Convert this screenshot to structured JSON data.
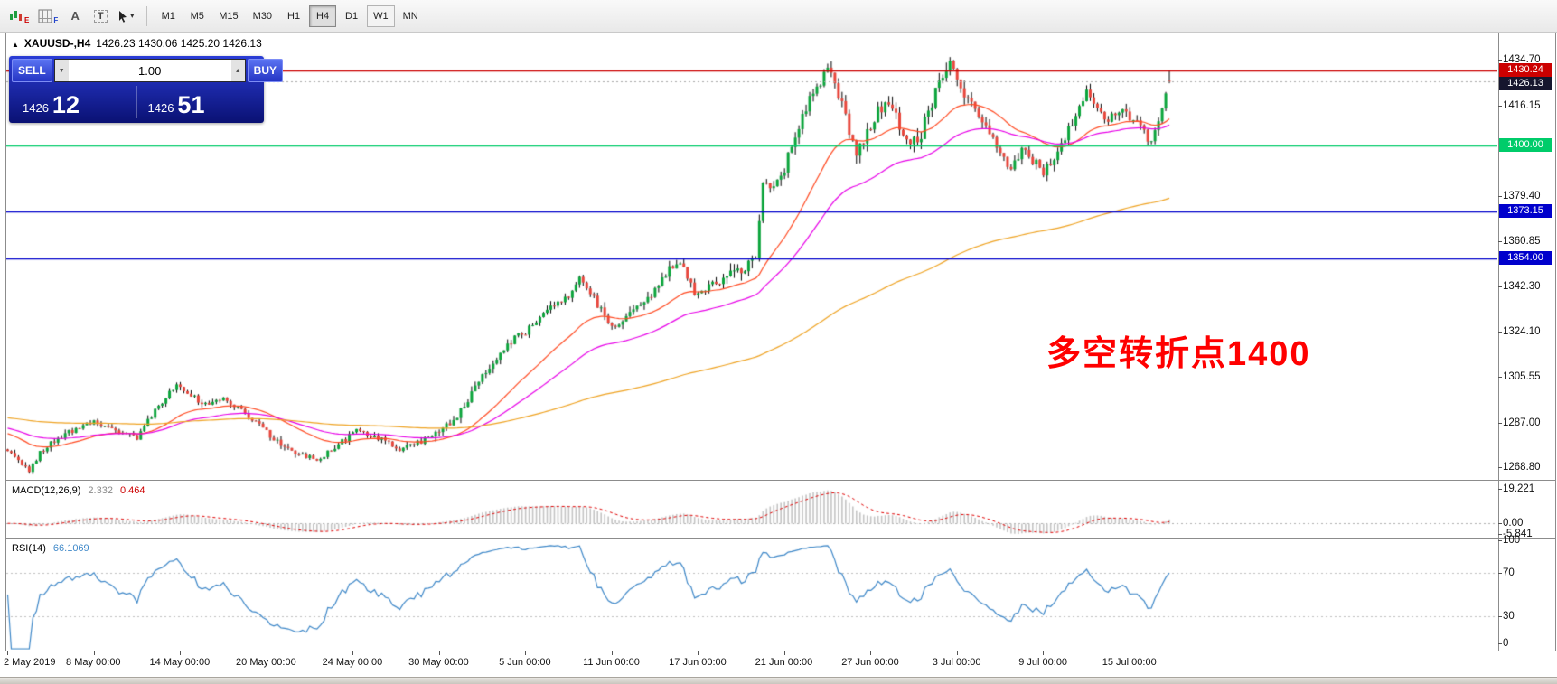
{
  "toolbar": {
    "tools": [
      {
        "name": "candlestick-chart-tool",
        "glyph": "E"
      },
      {
        "name": "indicator-grid-tool",
        "glyph": "F"
      },
      {
        "name": "font-a-tool",
        "glyph": "A"
      },
      {
        "name": "text-tool",
        "glyph": "T"
      },
      {
        "name": "cursor-tool",
        "glyph": "▾"
      }
    ],
    "timeframes": [
      {
        "label": "M1"
      },
      {
        "label": "M5"
      },
      {
        "label": "M15"
      },
      {
        "label": "M30"
      },
      {
        "label": "H1"
      },
      {
        "label": "H4",
        "active": true
      },
      {
        "label": "D1"
      },
      {
        "label": "W1",
        "boxed": true
      },
      {
        "label": "MN"
      }
    ]
  },
  "chart": {
    "marker": "▲",
    "symbol": "XAUUSD-,H4",
    "ohlc": "1426.23 1430.06 1425.20 1426.13"
  },
  "trade_panel": {
    "sell": "SELL",
    "buy": "BUY",
    "volume": "1.00",
    "spin_down": "▼",
    "spin_up": "▲",
    "bid": {
      "small": "1426",
      "big": "12"
    },
    "ask": {
      "small": "1426",
      "big": "51"
    }
  },
  "annotation": {
    "text": "多空转折点1400",
    "color": "#ff0000"
  },
  "chart_data": {
    "type": "candlestick",
    "symbol": "XAUUSD",
    "timeframe": "H4",
    "n_candles": 324,
    "ylim": [
      1264.0,
      1445.5
    ],
    "up_color": "#0ca53c",
    "down_color": "#e8463c",
    "price_path_anchors": [
      [
        0,
        1276
      ],
      [
        3,
        1271
      ],
      [
        6,
        1267
      ],
      [
        9,
        1275
      ],
      [
        14,
        1281
      ],
      [
        20,
        1285
      ],
      [
        24,
        1287
      ],
      [
        30,
        1283
      ],
      [
        36,
        1281
      ],
      [
        42,
        1294
      ],
      [
        47,
        1302
      ],
      [
        50,
        1299
      ],
      [
        55,
        1294
      ],
      [
        60,
        1297
      ],
      [
        64,
        1293
      ],
      [
        69,
        1287
      ],
      [
        74,
        1280
      ],
      [
        80,
        1274
      ],
      [
        86,
        1272
      ],
      [
        92,
        1278
      ],
      [
        97,
        1284
      ],
      [
        103,
        1281
      ],
      [
        109,
        1276
      ],
      [
        115,
        1279
      ],
      [
        121,
        1284
      ],
      [
        126,
        1292
      ],
      [
        132,
        1306
      ],
      [
        138,
        1318
      ],
      [
        143,
        1323
      ],
      [
        149,
        1331
      ],
      [
        155,
        1337
      ],
      [
        159,
        1345
      ],
      [
        163,
        1337
      ],
      [
        168,
        1326
      ],
      [
        173,
        1331
      ],
      [
        179,
        1339
      ],
      [
        184,
        1350
      ],
      [
        187,
        1353
      ],
      [
        191,
        1340
      ],
      [
        196,
        1343
      ],
      [
        201,
        1348
      ],
      [
        205,
        1349
      ],
      [
        208,
        1355
      ],
      [
        210,
        1383
      ],
      [
        213,
        1381
      ],
      [
        216,
        1391
      ],
      [
        219,
        1403
      ],
      [
        222,
        1415
      ],
      [
        225,
        1424
      ],
      [
        228,
        1430
      ],
      [
        230,
        1426
      ],
      [
        233,
        1411
      ],
      [
        236,
        1398
      ],
      [
        239,
        1405
      ],
      [
        242,
        1414
      ],
      [
        245,
        1419
      ],
      [
        248,
        1407
      ],
      [
        251,
        1400
      ],
      [
        254,
        1405
      ],
      [
        257,
        1418
      ],
      [
        260,
        1428
      ],
      [
        262,
        1434
      ],
      [
        264,
        1427
      ],
      [
        267,
        1419
      ],
      [
        270,
        1413
      ],
      [
        273,
        1404
      ],
      [
        276,
        1396
      ],
      [
        279,
        1391
      ],
      [
        282,
        1398
      ],
      [
        285,
        1394
      ],
      [
        288,
        1389
      ],
      [
        291,
        1394
      ],
      [
        294,
        1403
      ],
      [
        297,
        1413
      ],
      [
        300,
        1421
      ],
      [
        303,
        1416
      ],
      [
        306,
        1410
      ],
      [
        309,
        1415
      ],
      [
        312,
        1412
      ],
      [
        315,
        1407
      ],
      [
        318,
        1401
      ],
      [
        320,
        1409
      ],
      [
        322,
        1422
      ],
      [
        323,
        1426.1
      ]
    ],
    "volatility_segments": [
      [
        0,
        1.5
      ],
      [
        118,
        2.2
      ],
      [
        200,
        3.2
      ],
      [
        232,
        3.6
      ],
      [
        268,
        2.6
      ],
      [
        315,
        2.2
      ]
    ],
    "last_candle": {
      "open": 1426.23,
      "high": 1430.06,
      "low": 1425.2,
      "close": 1426.13
    },
    "moving_averages": [
      {
        "name": "ema-fast",
        "period": 28,
        "seed": 1283,
        "color": "#ff4a22"
      },
      {
        "name": "ema-mid",
        "period": 55,
        "seed": 1285,
        "color": "#e800e8"
      },
      {
        "name": "ema-slow",
        "period": 200,
        "seed": 1289,
        "color": "#efa322"
      }
    ],
    "levels": [
      {
        "price": 1430.24,
        "label": "1430.24",
        "color": "#cc0000",
        "badge": "#cc0000",
        "style": "solid",
        "width": 1.4
      },
      {
        "price": 1426.13,
        "label": "1426.13",
        "color": "#a8a8a8",
        "badge": "#16162e",
        "style": "dotted",
        "width": 1
      },
      {
        "price": 1400.0,
        "label": "1400.00",
        "color": "#00cc6a",
        "badge": "#00cc6a",
        "style": "solid",
        "width": 1.6
      },
      {
        "price": 1373.15,
        "label": "1373.15",
        "color": "#0000cc",
        "badge": "#0000cc",
        "style": "solid",
        "width": 1.6
      },
      {
        "price": 1354.0,
        "label": "1354.00",
        "color": "#0000cc",
        "badge": "#0000cc",
        "style": "solid",
        "width": 1.6
      }
    ],
    "price_axis_labels": [
      "1434.70",
      "1416.15",
      "1379.40",
      "1360.85",
      "1342.30",
      "1324.10",
      "1305.55",
      "1287.00",
      "1268.80"
    ],
    "date_ticks": [
      {
        "label": "2 May 2019",
        "index": 0
      },
      {
        "label": "8 May 00:00",
        "index": 24
      },
      {
        "label": "14 May 00:00",
        "index": 48
      },
      {
        "label": "20 May 00:00",
        "index": 72
      },
      {
        "label": "24 May 00:00",
        "index": 96
      },
      {
        "label": "30 May 00:00",
        "index": 120
      },
      {
        "label": "5 Jun 00:00",
        "index": 144
      },
      {
        "label": "11 Jun 00:00",
        "index": 168
      },
      {
        "label": "17 Jun 00:00",
        "index": 192
      },
      {
        "label": "21 Jun 00:00",
        "index": 216
      },
      {
        "label": "27 Jun 00:00",
        "index": 240
      },
      {
        "label": "3 Jul 00:00",
        "index": 264
      },
      {
        "label": "9 Jul 00:00",
        "index": 288
      },
      {
        "label": "15 Jul 00:00",
        "index": 312
      }
    ],
    "indicators": {
      "macd": {
        "label": "MACD(12,26,9)",
        "fast": 12,
        "slow": 26,
        "signal": 9,
        "value_main": "2.332",
        "value_signal": "0.464",
        "axis_labels": [
          {
            "label": "19.221",
            "value": 19.221
          },
          {
            "label": "0.00",
            "value": 0
          },
          {
            "label": "-5.841",
            "value": -5.841
          }
        ],
        "vlim": [
          -7,
          23
        ],
        "hist_color": "#c4c4c4",
        "signal_color": "#e00000"
      },
      "rsi": {
        "label": "RSI(14)",
        "period": 14,
        "value": "66.1069",
        "axis_labels": [
          {
            "label": "100",
            "value": 100
          },
          {
            "label": "70",
            "value": 70
          },
          {
            "label": "30",
            "value": 30
          },
          {
            "label": "0",
            "value": 0
          }
        ],
        "levels": [
          70,
          30
        ],
        "color": "#3d87c8"
      }
    }
  }
}
